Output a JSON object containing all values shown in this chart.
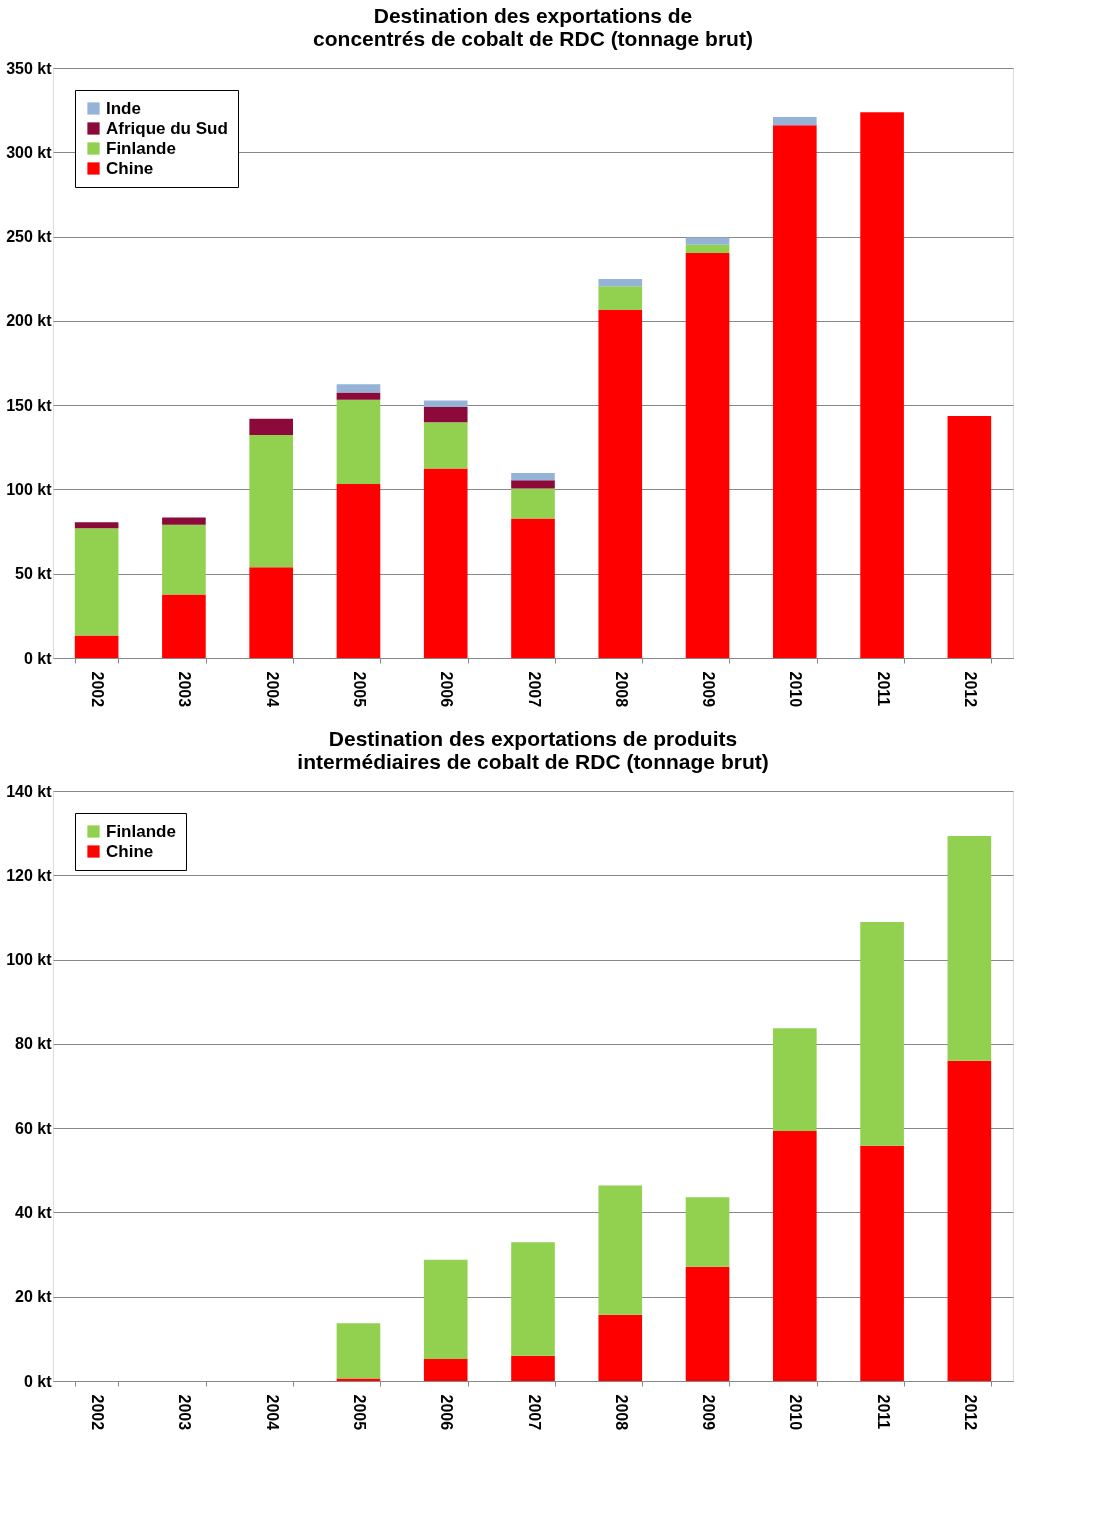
{
  "chart_data": [
    {
      "type": "bar",
      "title": "Destination des exportations de concentrés de cobalt de RDC (tonnage brut)",
      "stacked": true,
      "categories": [
        "2002",
        "2003",
        "2004",
        "2005",
        "2006",
        "2007",
        "2008",
        "2009",
        "2010",
        "2011",
        "2012"
      ],
      "series": [
        {
          "name": "Chine",
          "color": "#ff0000",
          "values": [
            13.4,
            37.6,
            53.8,
            103.2,
            112.4,
            82.8,
            206.5,
            240.3,
            316.1,
            323.7,
            143.5
          ]
        },
        {
          "name": "Finlande",
          "color": "#92d050",
          "values": [
            63.5,
            41.4,
            78.5,
            50.0,
            27.4,
            17.7,
            14.0,
            4.9,
            null,
            null,
            null
          ]
        },
        {
          "name": "Afrique du Sud",
          "color": "#8b0a3a",
          "values": [
            3.7,
            4.3,
            9.7,
            4.3,
            9.1,
            4.9,
            null,
            null,
            null,
            null,
            null
          ]
        },
        {
          "name": "Inde",
          "color": "#95b3d7",
          "values": [
            null,
            null,
            null,
            4.9,
            3.8,
            4.3,
            4.3,
            4.3,
            4.9,
            null,
            null
          ]
        }
      ],
      "ylim": [
        0,
        350
      ],
      "yticks": [
        {
          "value": 0,
          "label": "0 kt"
        },
        {
          "value": 50,
          "label": "50 kt"
        },
        {
          "value": 100,
          "label": "100 kt"
        },
        {
          "value": 150,
          "label": "150 kt"
        },
        {
          "value": 200,
          "label": "200 kt"
        },
        {
          "value": 250,
          "label": "250 kt"
        },
        {
          "value": 300,
          "label": "300 kt"
        },
        {
          "value": 350,
          "label": "350 kt"
        }
      ],
      "grid": "y",
      "legend": "top left"
    },
    {
      "type": "bar",
      "title": "Destination des exportations de produits intermédiaires de cobalt de RDC (tonnage brut)",
      "stacked": true,
      "categories": [
        "2002",
        "2003",
        "2004",
        "2005",
        "2006",
        "2007",
        "2008",
        "2009",
        "2010",
        "2011",
        "2012"
      ],
      "series": [
        {
          "name": "Chine",
          "color": "#ff0000",
          "values": [
            null,
            null,
            null,
            0.6,
            5.2,
            6.0,
            15.7,
            27.1,
            59.3,
            55.8,
            76.0
          ]
        },
        {
          "name": "Finlande",
          "color": "#92d050",
          "values": [
            null,
            null,
            null,
            13.1,
            23.6,
            26.9,
            30.7,
            16.5,
            24.4,
            53.1,
            53.3
          ]
        }
      ],
      "ylim": [
        0,
        140
      ],
      "yticks": [
        {
          "value": 0,
          "label": "0 kt"
        },
        {
          "value": 20,
          "label": "20 kt"
        },
        {
          "value": 40,
          "label": "40 kt"
        },
        {
          "value": 60,
          "label": "60 kt"
        },
        {
          "value": 80,
          "label": "80 kt"
        },
        {
          "value": 100,
          "label": "100 kt"
        },
        {
          "value": 120,
          "label": "120 kt"
        },
        {
          "value": 140,
          "label": "140 kt"
        }
      ],
      "grid": "y",
      "legend": "top left"
    }
  ]
}
